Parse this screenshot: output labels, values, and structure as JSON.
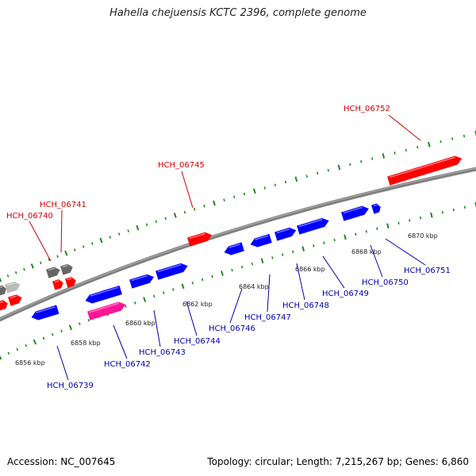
{
  "title": "Hahella chejuensis KCTC 2396, complete genome",
  "footer": {
    "accession": "Accession: NC_007645",
    "summary": "Topology: circular; Length: 7,215,267 bp; Genes: 6,860"
  },
  "colors": {
    "backbone": "#808080",
    "tick": "#1f8a1f",
    "forward_label": "#cc0000",
    "reverse_label": "#0000aa",
    "forward_gene": "#ff0000",
    "reverse_gene": "#0000ff",
    "pseudo_gene": "#ff1493",
    "other_gene_dark": "#666666",
    "other_gene_light": "#bbbbbb"
  },
  "ruler": [
    {
      "label": "6856 kbp"
    },
    {
      "label": "6858 kbp"
    },
    {
      "label": "6860 kbp"
    },
    {
      "label": "6862 kbp"
    },
    {
      "label": "6864 kbp"
    },
    {
      "label": "6866 kbp"
    },
    {
      "label": "6868 kbp"
    },
    {
      "label": "6870 kbp"
    }
  ],
  "forward_labels": [
    {
      "name": "HCH_06740"
    },
    {
      "name": "HCH_06741"
    },
    {
      "name": "HCH_06745"
    },
    {
      "name": "HCH_06752"
    }
  ],
  "reverse_labels": [
    {
      "name": "HCH_06739"
    },
    {
      "name": "HCH_06742"
    },
    {
      "name": "HCH_06743"
    },
    {
      "name": "HCH_06744"
    },
    {
      "name": "HCH_06746"
    },
    {
      "name": "HCH_06747"
    },
    {
      "name": "HCH_06748"
    },
    {
      "name": "HCH_06749"
    },
    {
      "name": "HCH_06750"
    },
    {
      "name": "HCH_06751"
    }
  ]
}
